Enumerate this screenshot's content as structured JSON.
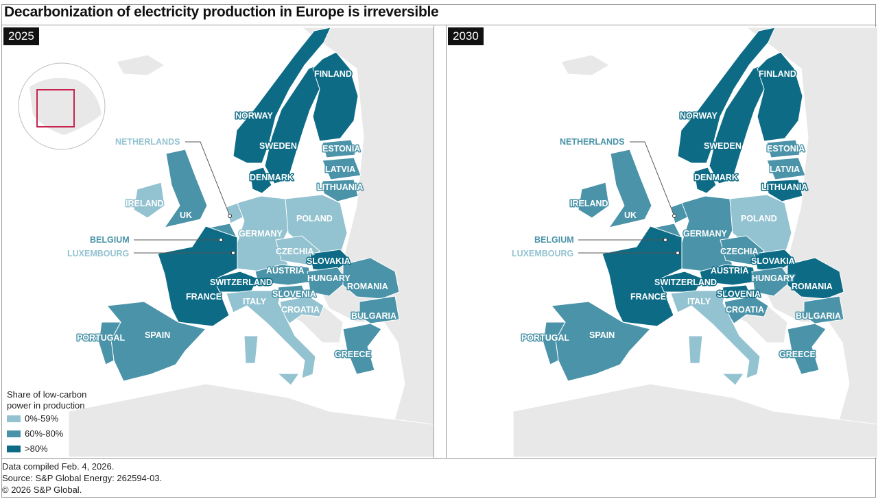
{
  "title": "Decarbonization of electricity production in Europe is irreversible",
  "legend": {
    "title": "Share of low-carbon power in production",
    "items": [
      {
        "key": "low",
        "label": "0%-59%",
        "color": "#93c2d0"
      },
      {
        "key": "mid",
        "label": "60%-80%",
        "color": "#4a93a8"
      },
      {
        "key": "high",
        "label": ">80%",
        "color": "#0d6b85"
      }
    ]
  },
  "colors": {
    "land": "#e8e8e8",
    "sea": "#ffffff",
    "border": "#ffffff",
    "globe_frame": "#c8234f"
  },
  "maps": [
    {
      "year": "2025",
      "countries": {
        "FINLAND": "high",
        "NORWAY": "high",
        "SWEDEN": "high",
        "DENMARK": "high",
        "ESTONIA": "mid",
        "LATVIA": "mid",
        "LITHUANIA": "mid",
        "NETHERLANDS": "low",
        "IRELAND": "low",
        "UK": "mid",
        "BELGIUM": "mid",
        "LUXEMBOURG": "low",
        "GERMANY": "low",
        "POLAND": "low",
        "CZECHIA": "low",
        "SLOVAKIA": "high",
        "AUSTRIA": "mid",
        "HUNGARY": "mid",
        "SWITZERLAND": "high",
        "SLOVENIA": "mid",
        "FRANCE": "high",
        "ITALY": "low",
        "CROATIA": "low",
        "ROMANIA": "mid",
        "BULGARIA": "mid",
        "GREECE": "mid",
        "SPAIN": "mid",
        "PORTUGAL": "mid"
      }
    },
    {
      "year": "2030",
      "countries": {
        "FINLAND": "high",
        "NORWAY": "high",
        "SWEDEN": "high",
        "DENMARK": "high",
        "ESTONIA": "mid",
        "LATVIA": "mid",
        "LITHUANIA": "high",
        "NETHERLANDS": "mid",
        "IRELAND": "mid",
        "UK": "mid",
        "BELGIUM": "mid",
        "LUXEMBOURG": "low",
        "GERMANY": "mid",
        "POLAND": "low",
        "CZECHIA": "mid",
        "SLOVAKIA": "high",
        "AUSTRIA": "high",
        "HUNGARY": "mid",
        "SWITZERLAND": "high",
        "SLOVENIA": "high",
        "FRANCE": "high",
        "ITALY": "low",
        "CROATIA": "mid",
        "ROMANIA": "high",
        "BULGARIA": "mid",
        "GREECE": "mid",
        "SPAIN": "mid",
        "PORTUGAL": "mid"
      }
    }
  ],
  "footer": [
    "Data compiled Feb. 4, 2026.",
    "Source: S&P Global Energy: 262594-03.",
    "© 2026 S&P Global."
  ]
}
